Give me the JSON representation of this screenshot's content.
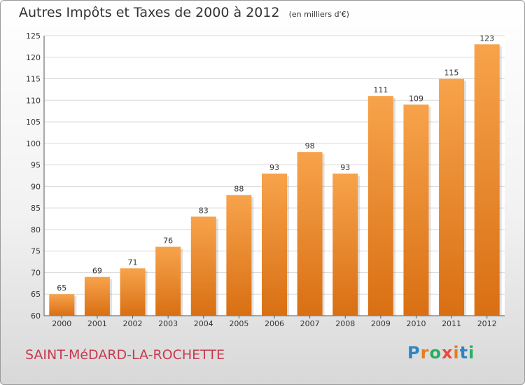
{
  "title": "Autres Impôts et Taxes de 2000 à 2012",
  "subtitle": "(en milliers d'€)",
  "commune": "SAINT-MéDARD-LA-ROCHETTE",
  "logo": {
    "text": "Proxiti",
    "letter_colors": [
      "#2e86c1",
      "#e67e22",
      "#27ae60",
      "#e74c3c",
      "#e67e22",
      "#2e86c1",
      "#27ae60"
    ]
  },
  "colors": {
    "bar_light": "#f7a34b",
    "bar_dark": "#d96f13",
    "grid": "#d9d9d9",
    "commune_text": "#c8394f"
  },
  "chart_data": {
    "type": "bar",
    "title": "Autres Impôts et Taxes de 2000 à 2012",
    "categories": [
      "2000",
      "2001",
      "2002",
      "2003",
      "2004",
      "2005",
      "2006",
      "2007",
      "2008",
      "2009",
      "2010",
      "2011",
      "2012"
    ],
    "values": [
      65,
      69,
      71,
      76,
      83,
      88,
      93,
      98,
      93,
      111,
      109,
      115,
      123
    ],
    "ylim": [
      60,
      125
    ],
    "yticks": [
      60,
      65,
      70,
      75,
      80,
      85,
      90,
      95,
      100,
      105,
      110,
      115,
      120,
      125
    ],
    "grid": true
  }
}
